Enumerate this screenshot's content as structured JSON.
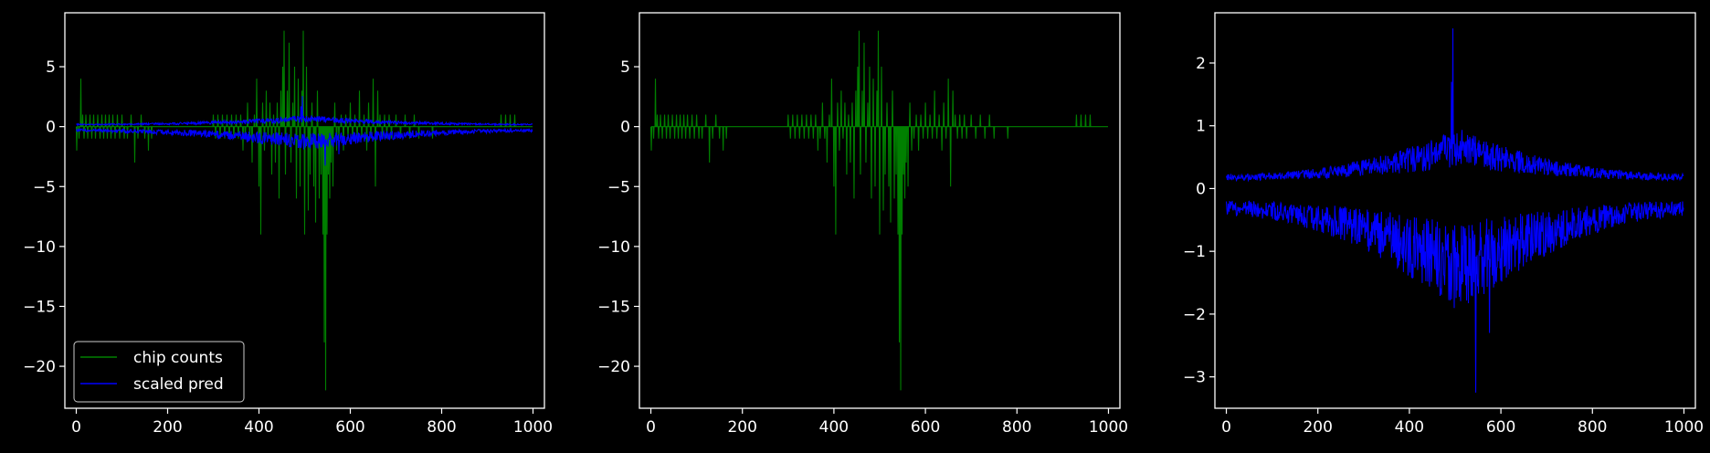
{
  "colors": {
    "background": "#000000",
    "axes": "#ffffff",
    "chip_counts": "#008000",
    "scaled_pred": "#0000ff"
  },
  "chart_data": [
    {
      "type": "line",
      "title": "",
      "xlabel": "",
      "ylabel": "",
      "xlim": [
        -25,
        1025
      ],
      "ylim": [
        -23.5,
        9.5
      ],
      "xticks": [
        0,
        200,
        400,
        600,
        800,
        1000
      ],
      "xtick_labels": [
        "0",
        "200",
        "400",
        "600",
        "800",
        "1000"
      ],
      "yticks": [
        5,
        0,
        -5,
        -10,
        -15,
        -20
      ],
      "ytick_labels": [
        "5",
        "0",
        "−5",
        "−10",
        "−15",
        "−20"
      ],
      "grid": false,
      "legend": {
        "position": "lower-left",
        "entries": [
          "chip counts",
          "scaled pred"
        ]
      },
      "series": [
        {
          "name": "chip counts",
          "color": "#008000",
          "kind": "counts",
          "n": 1000,
          "range": [
            -22,
            8
          ]
        },
        {
          "name": "scaled pred",
          "color": "#0000ff",
          "kind": "band",
          "n": 1000,
          "range": [
            -3.3,
            2.6
          ]
        }
      ]
    },
    {
      "type": "line",
      "title": "",
      "xlabel": "",
      "ylabel": "",
      "xlim": [
        -25,
        1025
      ],
      "ylim": [
        -23.5,
        9.5
      ],
      "xticks": [
        0,
        200,
        400,
        600,
        800,
        1000
      ],
      "xtick_labels": [
        "0",
        "200",
        "400",
        "600",
        "800",
        "1000"
      ],
      "yticks": [
        5,
        0,
        -5,
        -10,
        -15,
        -20
      ],
      "ytick_labels": [
        "5",
        "0",
        "−5",
        "−10",
        "−15",
        "−20"
      ],
      "grid": false,
      "series": [
        {
          "name": "",
          "color": "#008000",
          "kind": "counts",
          "n": 1000,
          "range": [
            -22,
            8
          ]
        }
      ]
    },
    {
      "type": "line",
      "title": "",
      "xlabel": "",
      "ylabel": "",
      "xlim": [
        -25,
        1025
      ],
      "ylim": [
        -3.5,
        2.8
      ],
      "xticks": [
        0,
        200,
        400,
        600,
        800,
        1000
      ],
      "xtick_labels": [
        "0",
        "200",
        "400",
        "600",
        "800",
        "1000"
      ],
      "yticks": [
        2,
        1,
        0,
        -1,
        -2,
        -3
      ],
      "ytick_labels": [
        "2",
        "1",
        "0",
        "−1",
        "−2",
        "−3"
      ],
      "grid": false,
      "series": [
        {
          "name": "",
          "color": "#0000ff",
          "kind": "band",
          "n": 1000,
          "range": [
            -3.3,
            2.6
          ]
        }
      ]
    }
  ]
}
